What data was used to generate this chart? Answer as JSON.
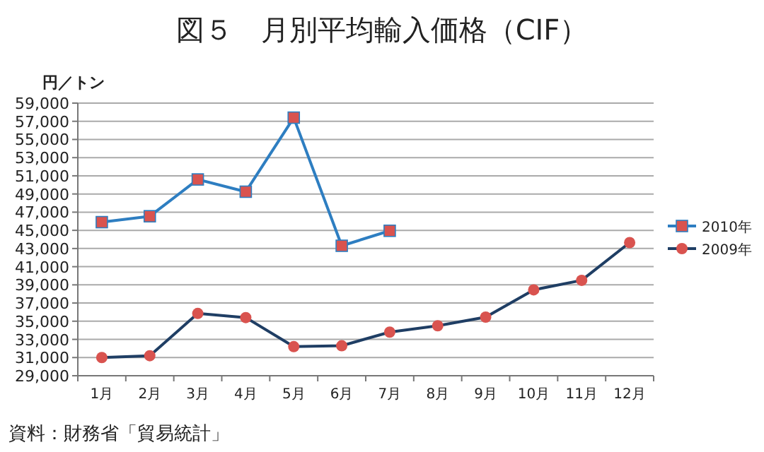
{
  "chart_data": {
    "type": "line",
    "title": "図５　月別平均輸入価格（CIF）",
    "ylabel": "円／トン",
    "categories": [
      "1月",
      "2月",
      "3月",
      "4月",
      "5月",
      "6月",
      "7月",
      "8月",
      "9月",
      "10月",
      "11月",
      "12月"
    ],
    "series": [
      {
        "name": "2010年",
        "color": "#2e7ec1",
        "marker": "square",
        "values": [
          45900,
          46550,
          50600,
          49250,
          57400,
          43300,
          44950,
          null,
          null,
          null,
          null,
          null
        ]
      },
      {
        "name": "2009年",
        "color": "#1f3e64",
        "marker": "circle",
        "values": [
          31000,
          31200,
          35850,
          35400,
          32200,
          32300,
          33800,
          34500,
          35450,
          38450,
          39500,
          43650
        ]
      }
    ],
    "ylim": [
      29000,
      59000
    ],
    "yticks": [
      {
        "value": 29000,
        "label": "29,000"
      },
      {
        "value": 31000,
        "label": "31,000"
      },
      {
        "value": 33000,
        "label": "33,000"
      },
      {
        "value": 35000,
        "label": "35,000"
      },
      {
        "value": 37000,
        "label": "37,000"
      },
      {
        "value": 39000,
        "label": "39,000"
      },
      {
        "value": 41000,
        "label": "41,000"
      },
      {
        "value": 43000,
        "label": "43,000"
      },
      {
        "value": 45000,
        "label": "45,000"
      },
      {
        "value": 47000,
        "label": "47,000"
      },
      {
        "value": 49000,
        "label": "49,000"
      },
      {
        "value": 51000,
        "label": "51,000"
      },
      {
        "value": 53000,
        "label": "53,000"
      },
      {
        "value": 55000,
        "label": "55,000"
      },
      {
        "value": 57000,
        "label": "57,000"
      },
      {
        "value": 59000,
        "label": "59,000"
      }
    ],
    "grid": "y",
    "legend": "right",
    "annotations": [
      "資料：財務省「貿易統計」"
    ]
  }
}
